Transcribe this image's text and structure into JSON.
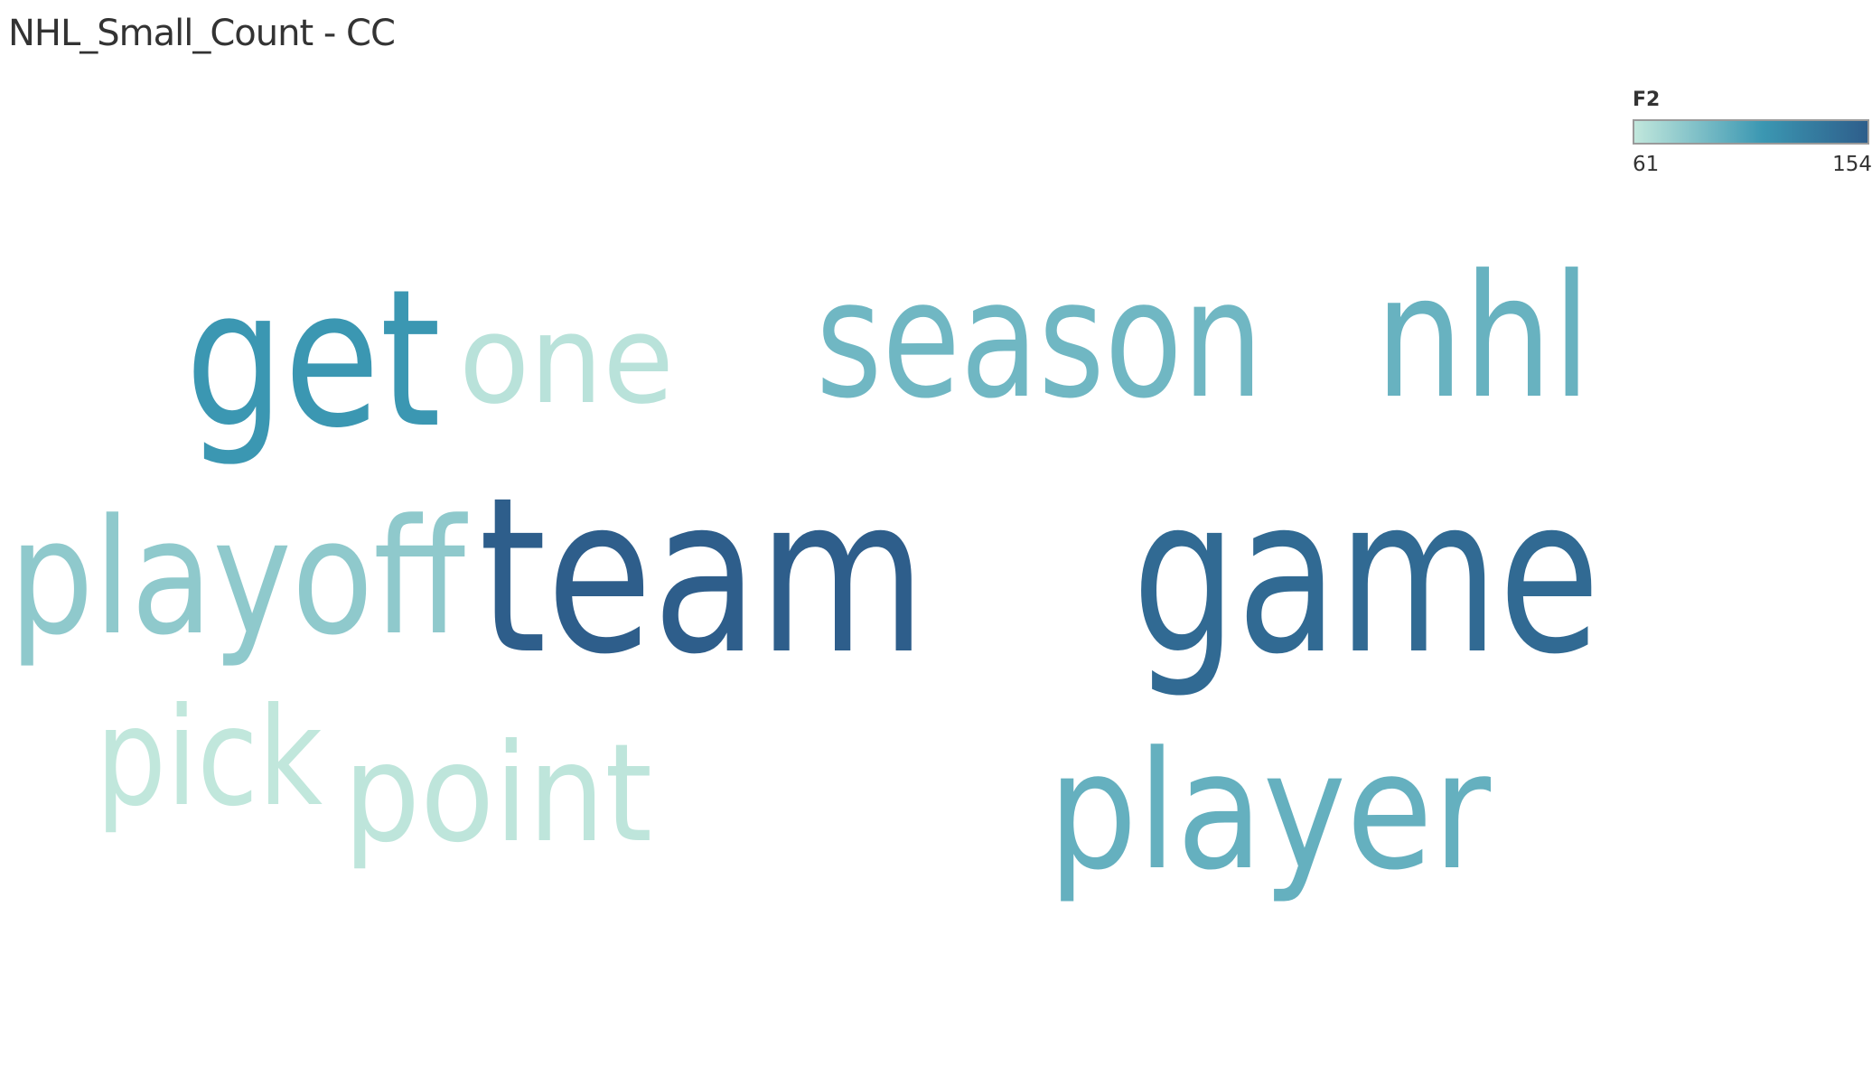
{
  "title": "NHL_Small_Count - CC",
  "legend": {
    "title": "F2",
    "min_label": "61",
    "max_label": "154",
    "color_min": "#c1e7dc",
    "color_mid": "#3b97b2",
    "color_max": "#2e5e8b"
  },
  "chart_data": {
    "type": "word_cloud",
    "color_measure": "F2",
    "color_range": [
      61,
      154
    ],
    "words": [
      {
        "word": "get",
        "F2": 112
      },
      {
        "word": "one",
        "F2": 64
      },
      {
        "word": "season",
        "F2": 92
      },
      {
        "word": "nhl",
        "F2": 95
      },
      {
        "word": "playoff",
        "F2": 80
      },
      {
        "word": "team",
        "F2": 154
      },
      {
        "word": "game",
        "F2": 145
      },
      {
        "word": "pick",
        "F2": 61
      },
      {
        "word": "point",
        "F2": 62
      },
      {
        "word": "player",
        "F2": 96
      }
    ]
  }
}
